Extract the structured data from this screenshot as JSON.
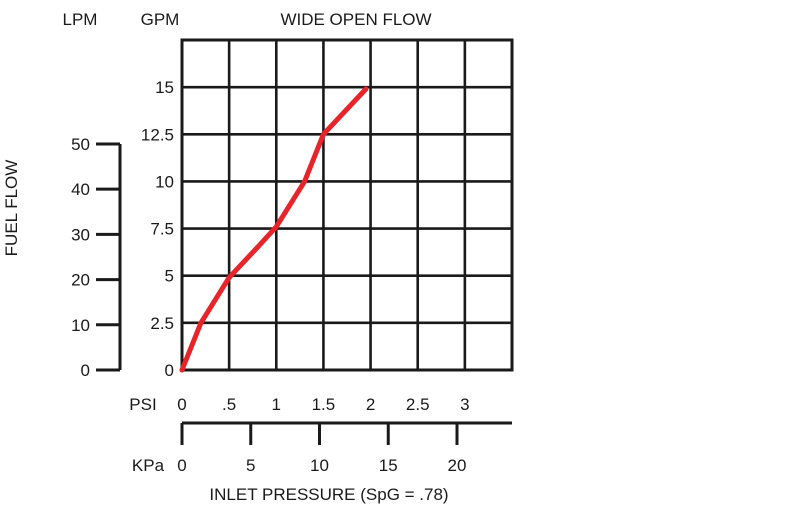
{
  "chart_data": {
    "type": "line",
    "title": "WIDE OPEN FLOW",
    "xlabel": "INLET PRESSURE (SpG = .78)",
    "ylabel": "FUEL FLOW",
    "left_axis_unit": "LPM",
    "inner_axis_unit": "GPM",
    "bottom_axis_unit": "PSI",
    "second_bottom_axis_unit": "KPa",
    "xlim": [
      0,
      3.5
    ],
    "ylim": [
      0,
      17.5
    ],
    "x_ticks": [
      {
        "value": 0,
        "label": "0"
      },
      {
        "value": 0.5,
        "label": ".5"
      },
      {
        "value": 1,
        "label": "1"
      },
      {
        "value": 1.5,
        "label": "1.5"
      },
      {
        "value": 2,
        "label": "2"
      },
      {
        "value": 2.5,
        "label": "2.5"
      },
      {
        "value": 3,
        "label": "3"
      }
    ],
    "y_ticks": [
      {
        "value": 0,
        "label": "0"
      },
      {
        "value": 2.5,
        "label": "2.5"
      },
      {
        "value": 5,
        "label": "5"
      },
      {
        "value": 7.5,
        "label": "7.5"
      },
      {
        "value": 10,
        "label": "10"
      },
      {
        "value": 12.5,
        "label": "12.5"
      },
      {
        "value": 15,
        "label": "15"
      }
    ],
    "lpm_ticks": [
      {
        "value": 0,
        "label": "0"
      },
      {
        "value": 10,
        "label": "10"
      },
      {
        "value": 20,
        "label": "20"
      },
      {
        "value": 30,
        "label": "30"
      },
      {
        "value": 40,
        "label": "40"
      },
      {
        "value": 50,
        "label": "50"
      }
    ],
    "lpm_range": [
      0,
      73
    ],
    "kpa_ticks": [
      {
        "value": 0,
        "label": "0"
      },
      {
        "value": 5,
        "label": "5"
      },
      {
        "value": 10,
        "label": "10"
      },
      {
        "value": 15,
        "label": "15"
      },
      {
        "value": 20,
        "label": "20"
      }
    ],
    "kpa_range": [
      0,
      24
    ],
    "grid": true,
    "series": [
      {
        "color": "#e8242b",
        "x": [
          0,
          0.2,
          0.5,
          0.8,
          1.0,
          1.3,
          1.5,
          1.95
        ],
        "y": [
          0,
          2.5,
          4.9,
          6.5,
          7.6,
          10,
          12.5,
          14.9
        ]
      }
    ]
  }
}
